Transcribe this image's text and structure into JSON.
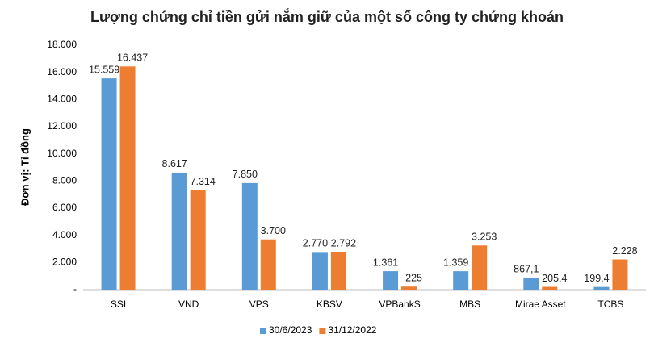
{
  "chart_data": {
    "type": "bar",
    "title": "Lượng chứng chỉ tiền gửi nắm giữ của một số công ty chứng khoán",
    "y_label": "Đơn vị: Tỉ đồng",
    "categories": [
      "SSI",
      "VND",
      "VPS",
      "KBSV",
      "VPBankS",
      "MBS",
      "Mirae Asset",
      "TCBS"
    ],
    "series": [
      {
        "name": "30/6/2023",
        "color": "#5b9bd5",
        "values": [
          15559,
          8617,
          7850,
          2770,
          1361,
          1359,
          867.1,
          199.4
        ],
        "value_labels": [
          "15.559",
          "8.617",
          "7.850",
          "2.770",
          "1.361",
          "1.359",
          "867,1",
          "199,4"
        ]
      },
      {
        "name": "31/12/2022",
        "color": "#ed7d31",
        "values": [
          16437,
          7314,
          3700,
          2792,
          225,
          3253,
          205.4,
          2228
        ],
        "value_labels": [
          "16.437",
          "7.314",
          "3.700",
          "2.792",
          "225",
          "3.253",
          "205,4",
          "2.228"
        ]
      }
    ],
    "ylim": [
      0,
      18000
    ],
    "yticks": [
      {
        "value": 0,
        "label": "-"
      },
      {
        "value": 2000,
        "label": "2.000"
      },
      {
        "value": 4000,
        "label": "4.000"
      },
      {
        "value": 6000,
        "label": "6.000"
      },
      {
        "value": 8000,
        "label": "8.000"
      },
      {
        "value": 10000,
        "label": "10.000"
      },
      {
        "value": 12000,
        "label": "12.000"
      },
      {
        "value": 14000,
        "label": "14.000"
      },
      {
        "value": 16000,
        "label": "16.000"
      },
      {
        "value": 18000,
        "label": "18.000"
      }
    ],
    "grid": false,
    "legend": "bottom"
  }
}
